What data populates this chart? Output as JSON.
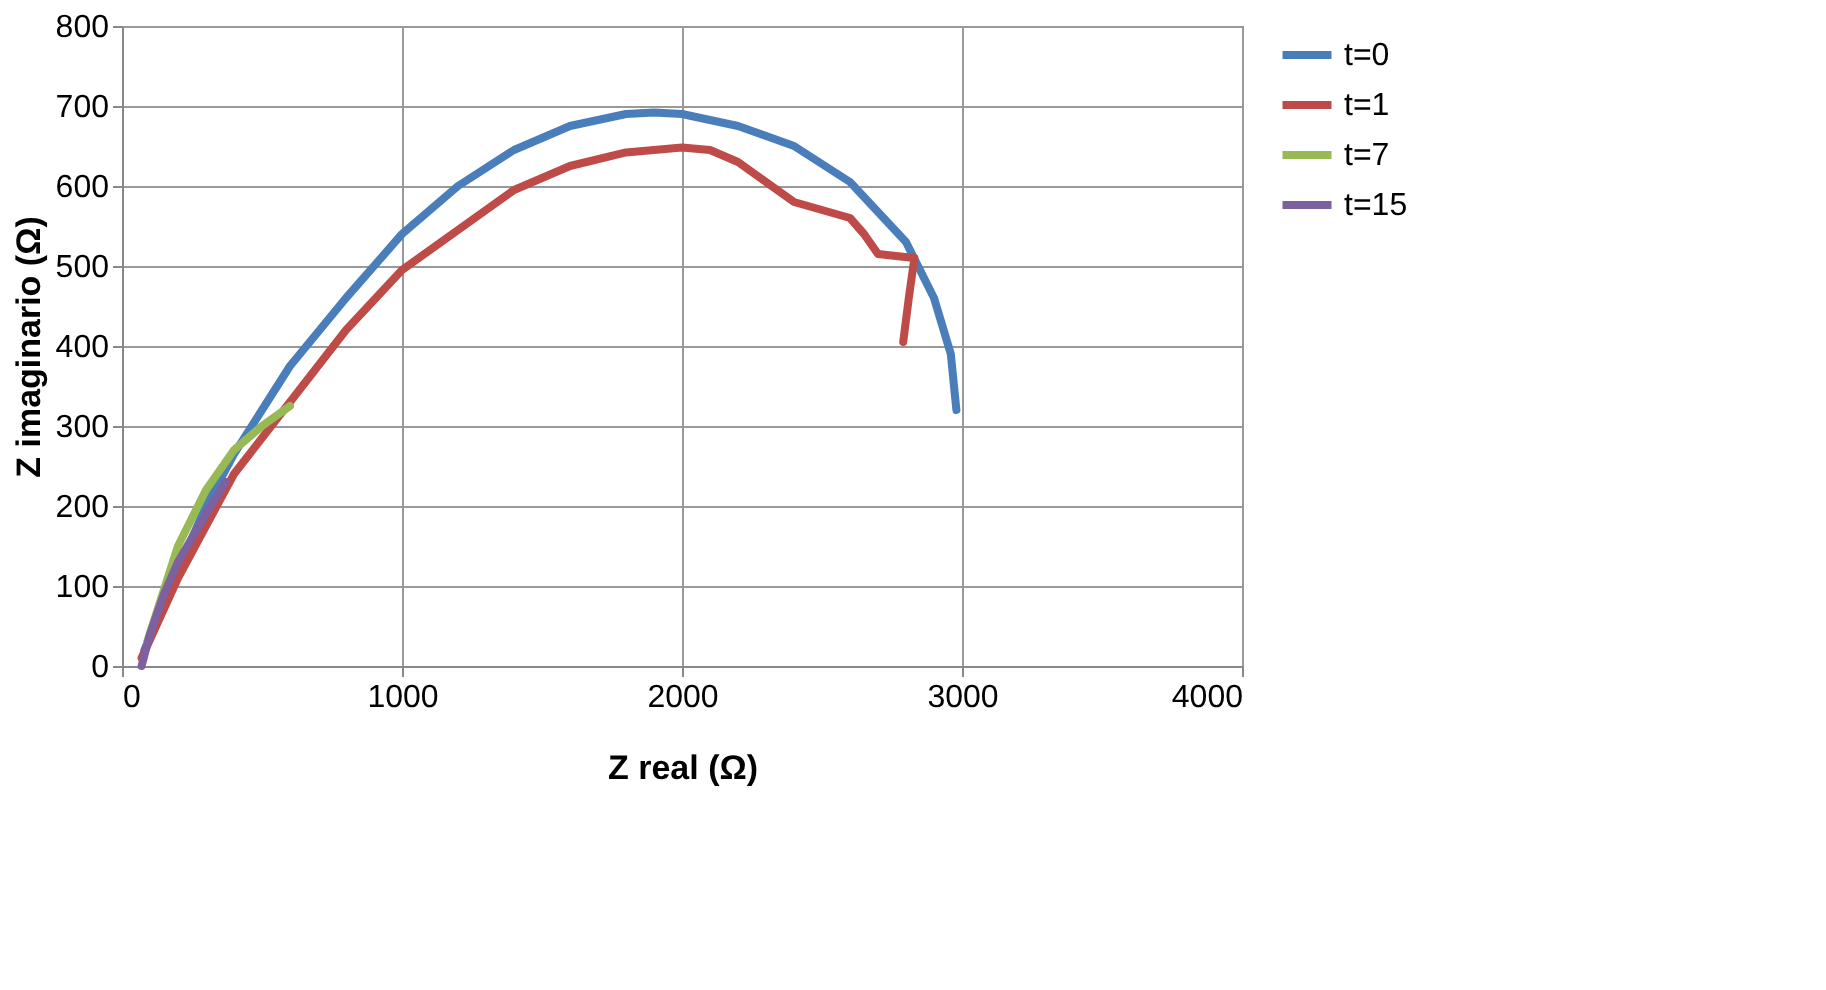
{
  "chart_data": {
    "type": "line",
    "xlabel": "Z real (Ω)",
    "ylabel": "Z imaginario (Ω)",
    "xlim": [
      0,
      4000
    ],
    "xticks": [
      0,
      1000,
      2000,
      3000,
      4000
    ],
    "ylim": [
      0,
      800
    ],
    "yticks": [
      0,
      100,
      200,
      300,
      400,
      500,
      600,
      700,
      800
    ],
    "grid": true,
    "legend": "right",
    "line_style": "solid",
    "marker": "none",
    "series": [
      {
        "name": "t=0",
        "color": "#4a7ebb",
        "x": [
          80,
          200,
          300,
          400,
          500,
          600,
          800,
          1000,
          1200,
          1400,
          1600,
          1800,
          1900,
          2000,
          2200,
          2400,
          2600,
          2800,
          2900,
          2960,
          2980
        ],
        "values": [
          20,
          120,
          200,
          265,
          320,
          375,
          460,
          540,
          600,
          645,
          675,
          690,
          692,
          690,
          675,
          650,
          605,
          530,
          460,
          390,
          320
        ]
      },
      {
        "name": "t=1",
        "color": "#be4b48",
        "x": [
          70,
          200,
          400,
          600,
          800,
          1000,
          1200,
          1400,
          1600,
          1800,
          2000,
          2100,
          2200,
          2300,
          2400,
          2500,
          2600,
          2650,
          2700,
          2780,
          2830,
          2810,
          2790
        ],
        "values": [
          10,
          110,
          240,
          330,
          420,
          495,
          545,
          595,
          625,
          642,
          648,
          645,
          630,
          605,
          580,
          570,
          560,
          540,
          515,
          512,
          510,
          460,
          405
        ]
      },
      {
        "name": "t=7",
        "color": "#98b954",
        "x": [
          90,
          200,
          300,
          400,
          500,
          600
        ],
        "values": [
          30,
          150,
          220,
          270,
          300,
          325
        ]
      },
      {
        "name": "t=15",
        "color": "#7d60a0",
        "x": [
          70,
          100,
          150,
          200,
          300,
          370
        ],
        "values": [
          0,
          40,
          90,
          130,
          190,
          230
        ]
      }
    ]
  }
}
